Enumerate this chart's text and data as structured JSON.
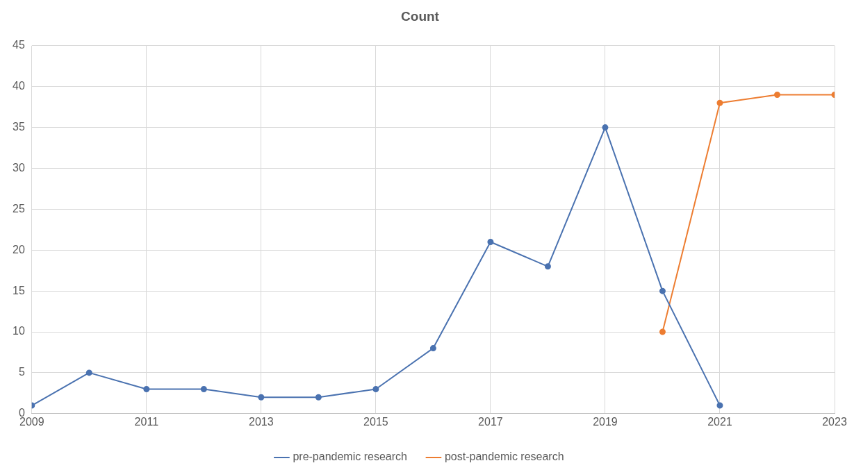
{
  "chart_data": {
    "type": "line",
    "title": "Count",
    "xlim": [
      2009,
      2023
    ],
    "xticks": [
      2009,
      2011,
      2013,
      2015,
      2017,
      2019,
      2021,
      2023
    ],
    "ylim": [
      0,
      45
    ],
    "yticks": [
      0,
      5,
      10,
      15,
      20,
      25,
      30,
      35,
      40,
      45
    ],
    "grid": true,
    "legend": "bottom",
    "marker": "circle",
    "line_style": "solid",
    "series": [
      {
        "name": "pre-pandemic research",
        "color": "#4a72b0",
        "x": [
          2009,
          2010,
          2011,
          2012,
          2013,
          2014,
          2015,
          2016,
          2017,
          2018,
          2019,
          2020,
          2021
        ],
        "values": [
          1,
          5,
          3,
          3,
          2,
          2,
          3,
          8,
          21,
          18,
          35,
          15,
          1
        ]
      },
      {
        "name": "post-pandemic research",
        "color": "#ed7d31",
        "x": [
          2020,
          2021,
          2022,
          2023
        ],
        "values": [
          10,
          38,
          39,
          39
        ]
      }
    ]
  }
}
